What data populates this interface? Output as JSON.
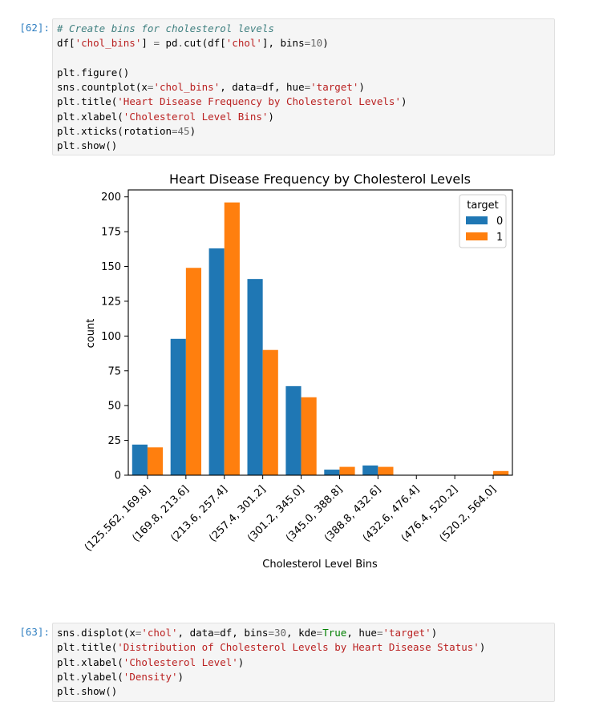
{
  "cells": [
    {
      "prompt": "[62]:",
      "code_lines": [
        [
          {
            "t": "# Create bins for cholesterol levels",
            "c": "tk-comment"
          }
        ],
        [
          {
            "t": "df["
          },
          {
            "t": "'chol_bins'",
            "c": "tk-str"
          },
          {
            "t": "] "
          },
          {
            "t": "=",
            "c": "tk-op"
          },
          {
            "t": " pd"
          },
          {
            "t": ".",
            "c": "tk-op"
          },
          {
            "t": "cut(df["
          },
          {
            "t": "'chol'",
            "c": "tk-str"
          },
          {
            "t": "], bins"
          },
          {
            "t": "=",
            "c": "tk-op"
          },
          {
            "t": "10",
            "c": "tk-num"
          },
          {
            "t": ")"
          }
        ],
        [
          {
            "t": ""
          }
        ],
        [
          {
            "t": "plt"
          },
          {
            "t": ".",
            "c": "tk-op"
          },
          {
            "t": "figure()"
          }
        ],
        [
          {
            "t": "sns"
          },
          {
            "t": ".",
            "c": "tk-op"
          },
          {
            "t": "countplot(x"
          },
          {
            "t": "=",
            "c": "tk-op"
          },
          {
            "t": "'chol_bins'",
            "c": "tk-str"
          },
          {
            "t": ", data"
          },
          {
            "t": "=",
            "c": "tk-op"
          },
          {
            "t": "df, hue"
          },
          {
            "t": "=",
            "c": "tk-op"
          },
          {
            "t": "'target'",
            "c": "tk-str"
          },
          {
            "t": ")"
          }
        ],
        [
          {
            "t": "plt"
          },
          {
            "t": ".",
            "c": "tk-op"
          },
          {
            "t": "title("
          },
          {
            "t": "'Heart Disease Frequency by Cholesterol Levels'",
            "c": "tk-str"
          },
          {
            "t": ")"
          }
        ],
        [
          {
            "t": "plt"
          },
          {
            "t": ".",
            "c": "tk-op"
          },
          {
            "t": "xlabel("
          },
          {
            "t": "'Cholesterol Level Bins'",
            "c": "tk-str"
          },
          {
            "t": ")"
          }
        ],
        [
          {
            "t": "plt"
          },
          {
            "t": ".",
            "c": "tk-op"
          },
          {
            "t": "xticks(rotation"
          },
          {
            "t": "=",
            "c": "tk-op"
          },
          {
            "t": "45",
            "c": "tk-num"
          },
          {
            "t": ")"
          }
        ],
        [
          {
            "t": "plt"
          },
          {
            "t": ".",
            "c": "tk-op"
          },
          {
            "t": "show()"
          }
        ]
      ]
    },
    {
      "prompt": "[63]:",
      "code_lines": [
        [
          {
            "t": "sns"
          },
          {
            "t": ".",
            "c": "tk-op"
          },
          {
            "t": "displot(x"
          },
          {
            "t": "=",
            "c": "tk-op"
          },
          {
            "t": "'chol'",
            "c": "tk-str"
          },
          {
            "t": ", data"
          },
          {
            "t": "=",
            "c": "tk-op"
          },
          {
            "t": "df, bins"
          },
          {
            "t": "=",
            "c": "tk-op"
          },
          {
            "t": "30",
            "c": "tk-num"
          },
          {
            "t": ", kde"
          },
          {
            "t": "=",
            "c": "tk-op"
          },
          {
            "t": "True",
            "c": "tk-kw"
          },
          {
            "t": ", hue"
          },
          {
            "t": "=",
            "c": "tk-op"
          },
          {
            "t": "'target'",
            "c": "tk-str"
          },
          {
            "t": ")"
          }
        ],
        [
          {
            "t": "plt"
          },
          {
            "t": ".",
            "c": "tk-op"
          },
          {
            "t": "title("
          },
          {
            "t": "'Distribution of Cholesterol Levels by Heart Disease Status'",
            "c": "tk-str"
          },
          {
            "t": ")"
          }
        ],
        [
          {
            "t": "plt"
          },
          {
            "t": ".",
            "c": "tk-op"
          },
          {
            "t": "xlabel("
          },
          {
            "t": "'Cholesterol Level'",
            "c": "tk-str"
          },
          {
            "t": ")"
          }
        ],
        [
          {
            "t": "plt"
          },
          {
            "t": ".",
            "c": "tk-op"
          },
          {
            "t": "ylabel("
          },
          {
            "t": "'Density'",
            "c": "tk-str"
          },
          {
            "t": ")"
          }
        ],
        [
          {
            "t": "plt"
          },
          {
            "t": ".",
            "c": "tk-op"
          },
          {
            "t": "show()"
          }
        ]
      ]
    }
  ],
  "chart_data": {
    "type": "bar",
    "title": "Heart Disease Frequency by Cholesterol Levels",
    "xlabel": "Cholesterol Level Bins",
    "ylabel": "count",
    "ylim": [
      0,
      205
    ],
    "yticks": [
      0,
      25,
      50,
      75,
      100,
      125,
      150,
      175,
      200
    ],
    "categories": [
      "(125.562, 169.8]",
      "(169.8, 213.6]",
      "(213.6, 257.4]",
      "(257.4, 301.2]",
      "(301.2, 345.0]",
      "(345.0, 388.8]",
      "(388.8, 432.6]",
      "(432.6, 476.4]",
      "(476.4, 520.2]",
      "(520.2, 564.0]"
    ],
    "legend_title": "target",
    "legend_position": "upper right",
    "series": [
      {
        "name": "0",
        "color": "#1f77b4",
        "values": [
          22,
          98,
          163,
          141,
          64,
          4,
          7,
          0,
          0,
          0
        ]
      },
      {
        "name": "1",
        "color": "#ff7f0e",
        "values": [
          20,
          149,
          196,
          90,
          56,
          6,
          6,
          0,
          0,
          3
        ]
      }
    ]
  }
}
